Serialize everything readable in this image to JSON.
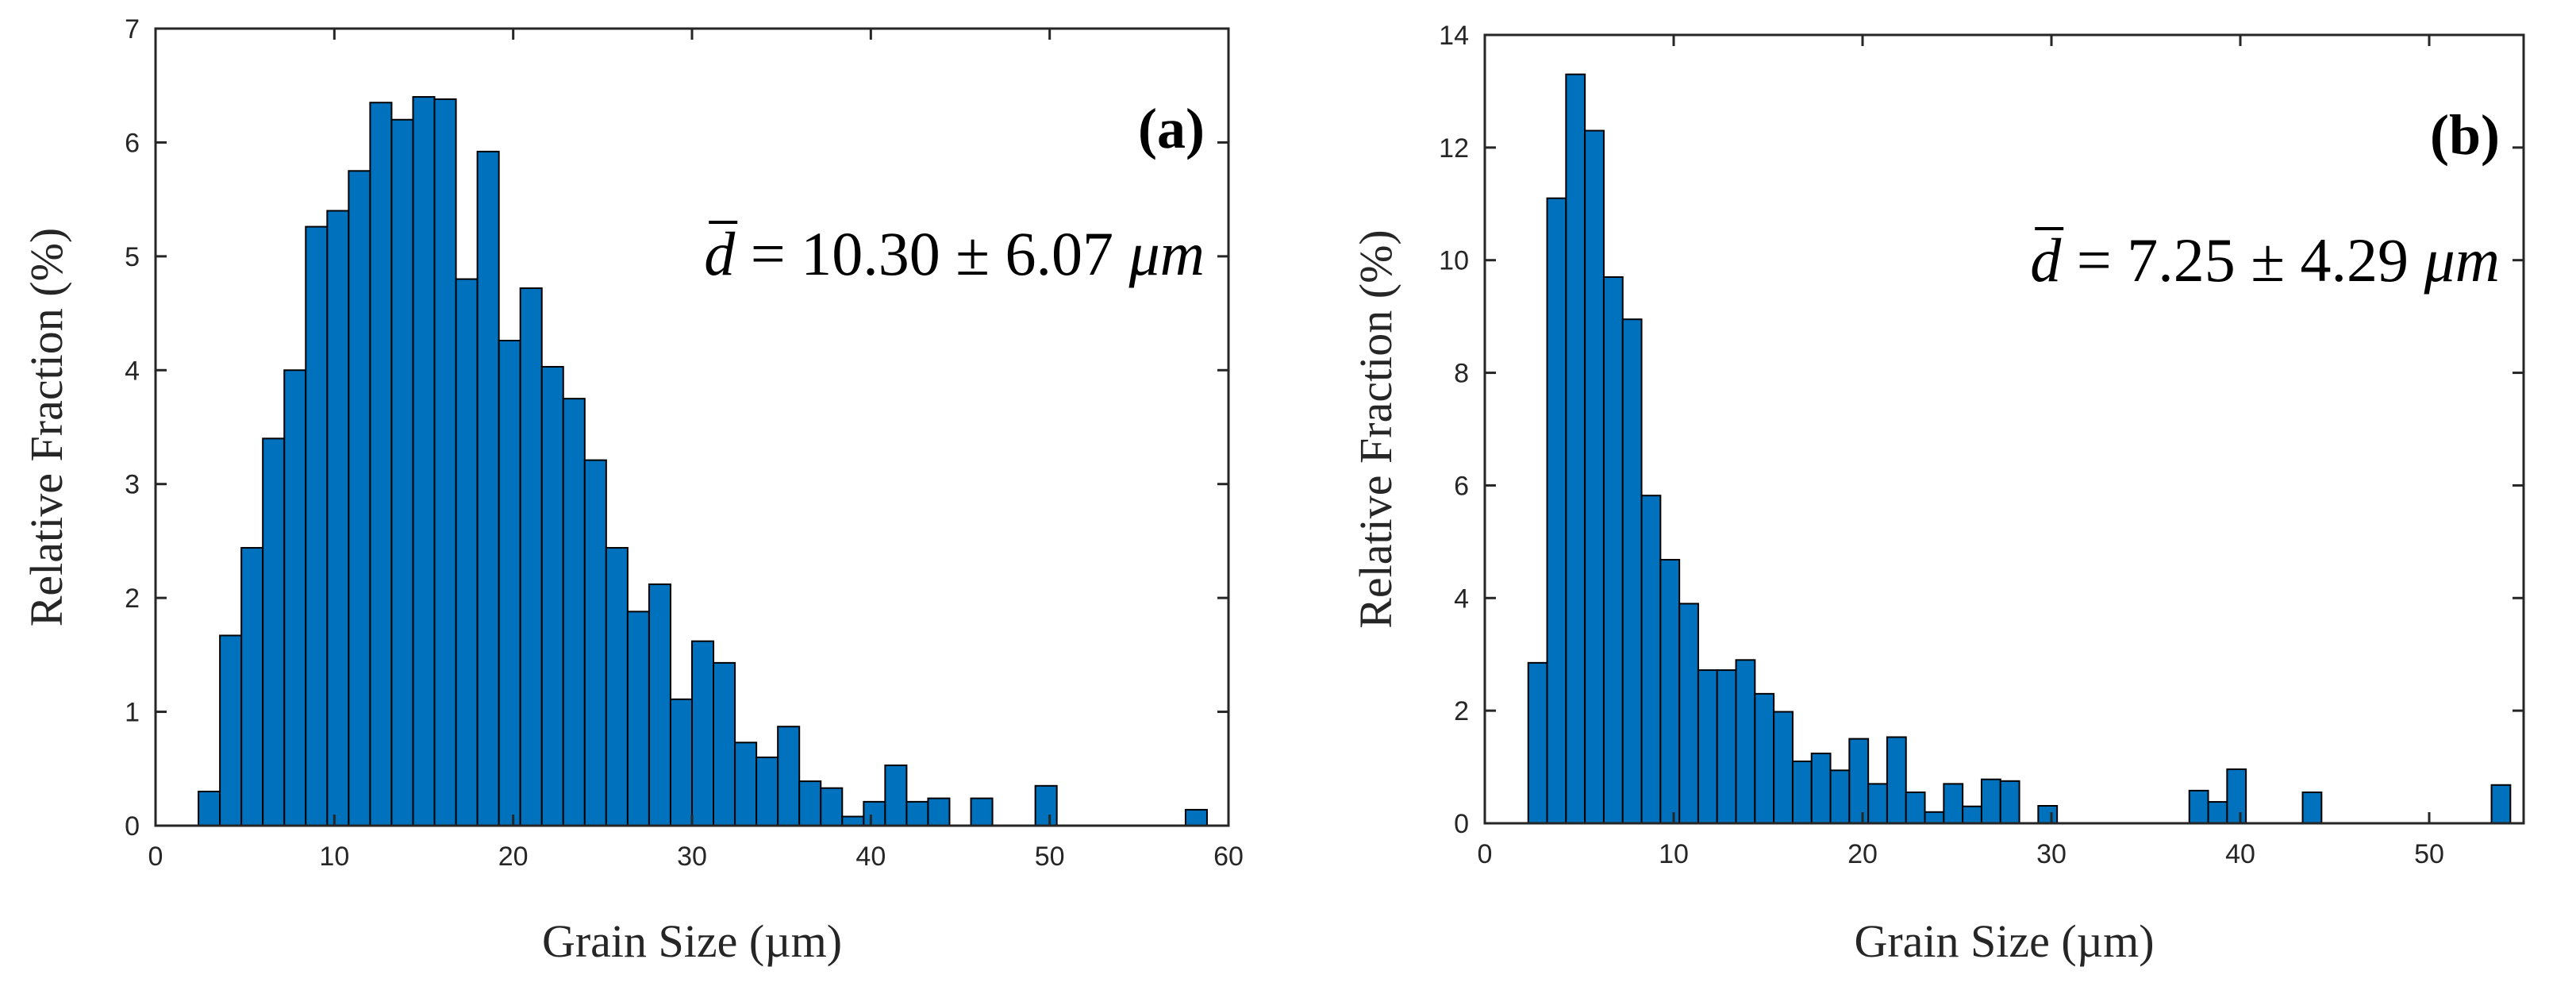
{
  "chart_data": [
    {
      "type": "bar",
      "panel_label": "(a)",
      "xlabel": "Grain Size (µm)",
      "ylabel": "Relative Fraction (%)",
      "xlim": [
        0,
        60
      ],
      "ylim": [
        0,
        7
      ],
      "xticks": [
        0,
        10,
        20,
        30,
        40,
        50,
        60
      ],
      "yticks": [
        0,
        1,
        2,
        3,
        4,
        5,
        6,
        7
      ],
      "bin_width": 1.2,
      "bin_start": 2.4,
      "values": [
        0.3,
        1.67,
        2.44,
        3.4,
        4.0,
        5.26,
        5.4,
        5.75,
        6.35,
        6.2,
        6.4,
        6.38,
        4.8,
        5.92,
        4.26,
        4.72,
        4.03,
        3.75,
        3.21,
        2.44,
        1.88,
        2.12,
        1.11,
        1.62,
        1.43,
        0.73,
        0.6,
        0.87,
        0.39,
        0.33,
        0.08,
        0.21,
        0.53,
        0.21,
        0.24,
        0,
        0.24,
        0,
        0,
        0.35,
        0,
        0,
        0,
        0,
        0,
        0,
        0.14
      ],
      "annotation": {
        "symbol": "d",
        "rest": "= 10.30 ± 6.07 ",
        "unit": "μm"
      },
      "colors": {
        "bar": "#0072BD",
        "edge": "#000000",
        "axis": "#262626"
      }
    },
    {
      "type": "bar",
      "panel_label": "(b)",
      "xlabel": "Grain Size (µm)",
      "ylabel": "Relative Fraction (%)",
      "xlim": [
        0,
        55
      ],
      "ylim": [
        0,
        14
      ],
      "xticks": [
        0,
        10,
        20,
        30,
        40,
        50
      ],
      "yticks": [
        0,
        2,
        4,
        6,
        8,
        10,
        12,
        14
      ],
      "bin_width": 1.0,
      "bin_start": 2.3,
      "values": [
        2.85,
        11.1,
        13.3,
        12.3,
        9.7,
        8.95,
        5.82,
        4.68,
        3.9,
        2.72,
        2.72,
        2.9,
        2.3,
        1.98,
        1.1,
        1.24,
        0.94,
        1.5,
        0.7,
        1.53,
        0.55,
        0.2,
        0.7,
        0.3,
        0.78,
        0.75,
        0,
        0.31,
        0,
        0,
        0,
        0,
        0,
        0,
        0,
        0.58,
        0.38,
        0.96,
        0,
        0,
        0,
        0.55,
        0,
        0,
        0,
        0,
        0,
        0,
        0,
        0,
        0,
        0.68
      ],
      "annotation": {
        "symbol": "d",
        "rest": "= 7.25 ± 4.29 ",
        "unit": "μm"
      },
      "colors": {
        "bar": "#0072BD",
        "edge": "#000000",
        "axis": "#262626"
      }
    }
  ]
}
